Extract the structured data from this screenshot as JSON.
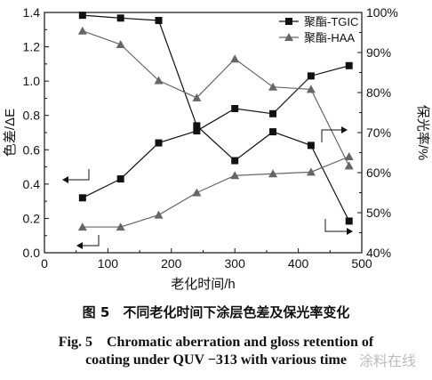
{
  "chart_data": {
    "type": "line",
    "x": [
      60,
      120,
      180,
      240,
      300,
      360,
      420,
      480
    ],
    "xlabel": "老化时间/h",
    "ylabel_left": "色差/ΔE",
    "ylabel_right": "保光率/%",
    "xlim": [
      0,
      500
    ],
    "ylim_left": [
      0.0,
      1.4
    ],
    "ylim_right": [
      40,
      100
    ],
    "x_ticks": [
      "0",
      "100",
      "200",
      "300",
      "400",
      "500"
    ],
    "y_left_ticks": [
      "0.0",
      "0.2",
      "0.4",
      "0.6",
      "0.8",
      "1.0",
      "1.2",
      "1.4"
    ],
    "y_right_ticks": [
      "40%",
      "50%",
      "60%",
      "70%",
      "80%",
      "90%",
      "100%"
    ],
    "grid": false,
    "legend_position": "top-right",
    "series": [
      {
        "name": "聚酯-TGIC",
        "marker": "square",
        "color": "#111111",
        "color_difference": [
          0.32,
          0.43,
          0.64,
          0.71,
          0.84,
          0.81,
          1.03,
          1.09
        ],
        "gloss_retention": [
          99.3,
          98.6,
          98.0,
          71.7,
          63.0,
          70.2,
          66.8,
          47.9
        ]
      },
      {
        "name": "聚酯-HAA",
        "marker": "triangle",
        "color": "#666666",
        "color_difference": [
          0.15,
          0.15,
          0.22,
          0.35,
          0.45,
          0.46,
          0.47,
          0.56
        ],
        "gloss_retention": [
          95.4,
          92.0,
          83.0,
          78.7,
          88.4,
          81.4,
          80.8,
          61.7
        ]
      }
    ]
  },
  "caption": {
    "cn": "图 5　不同老化时间下涂层色差及保光率变化",
    "en_line1": "Fig. 5　Chromatic aberration and gloss retention of",
    "en_line2": "coating under QUV −313 with various time"
  },
  "watermark": "涂料在线"
}
